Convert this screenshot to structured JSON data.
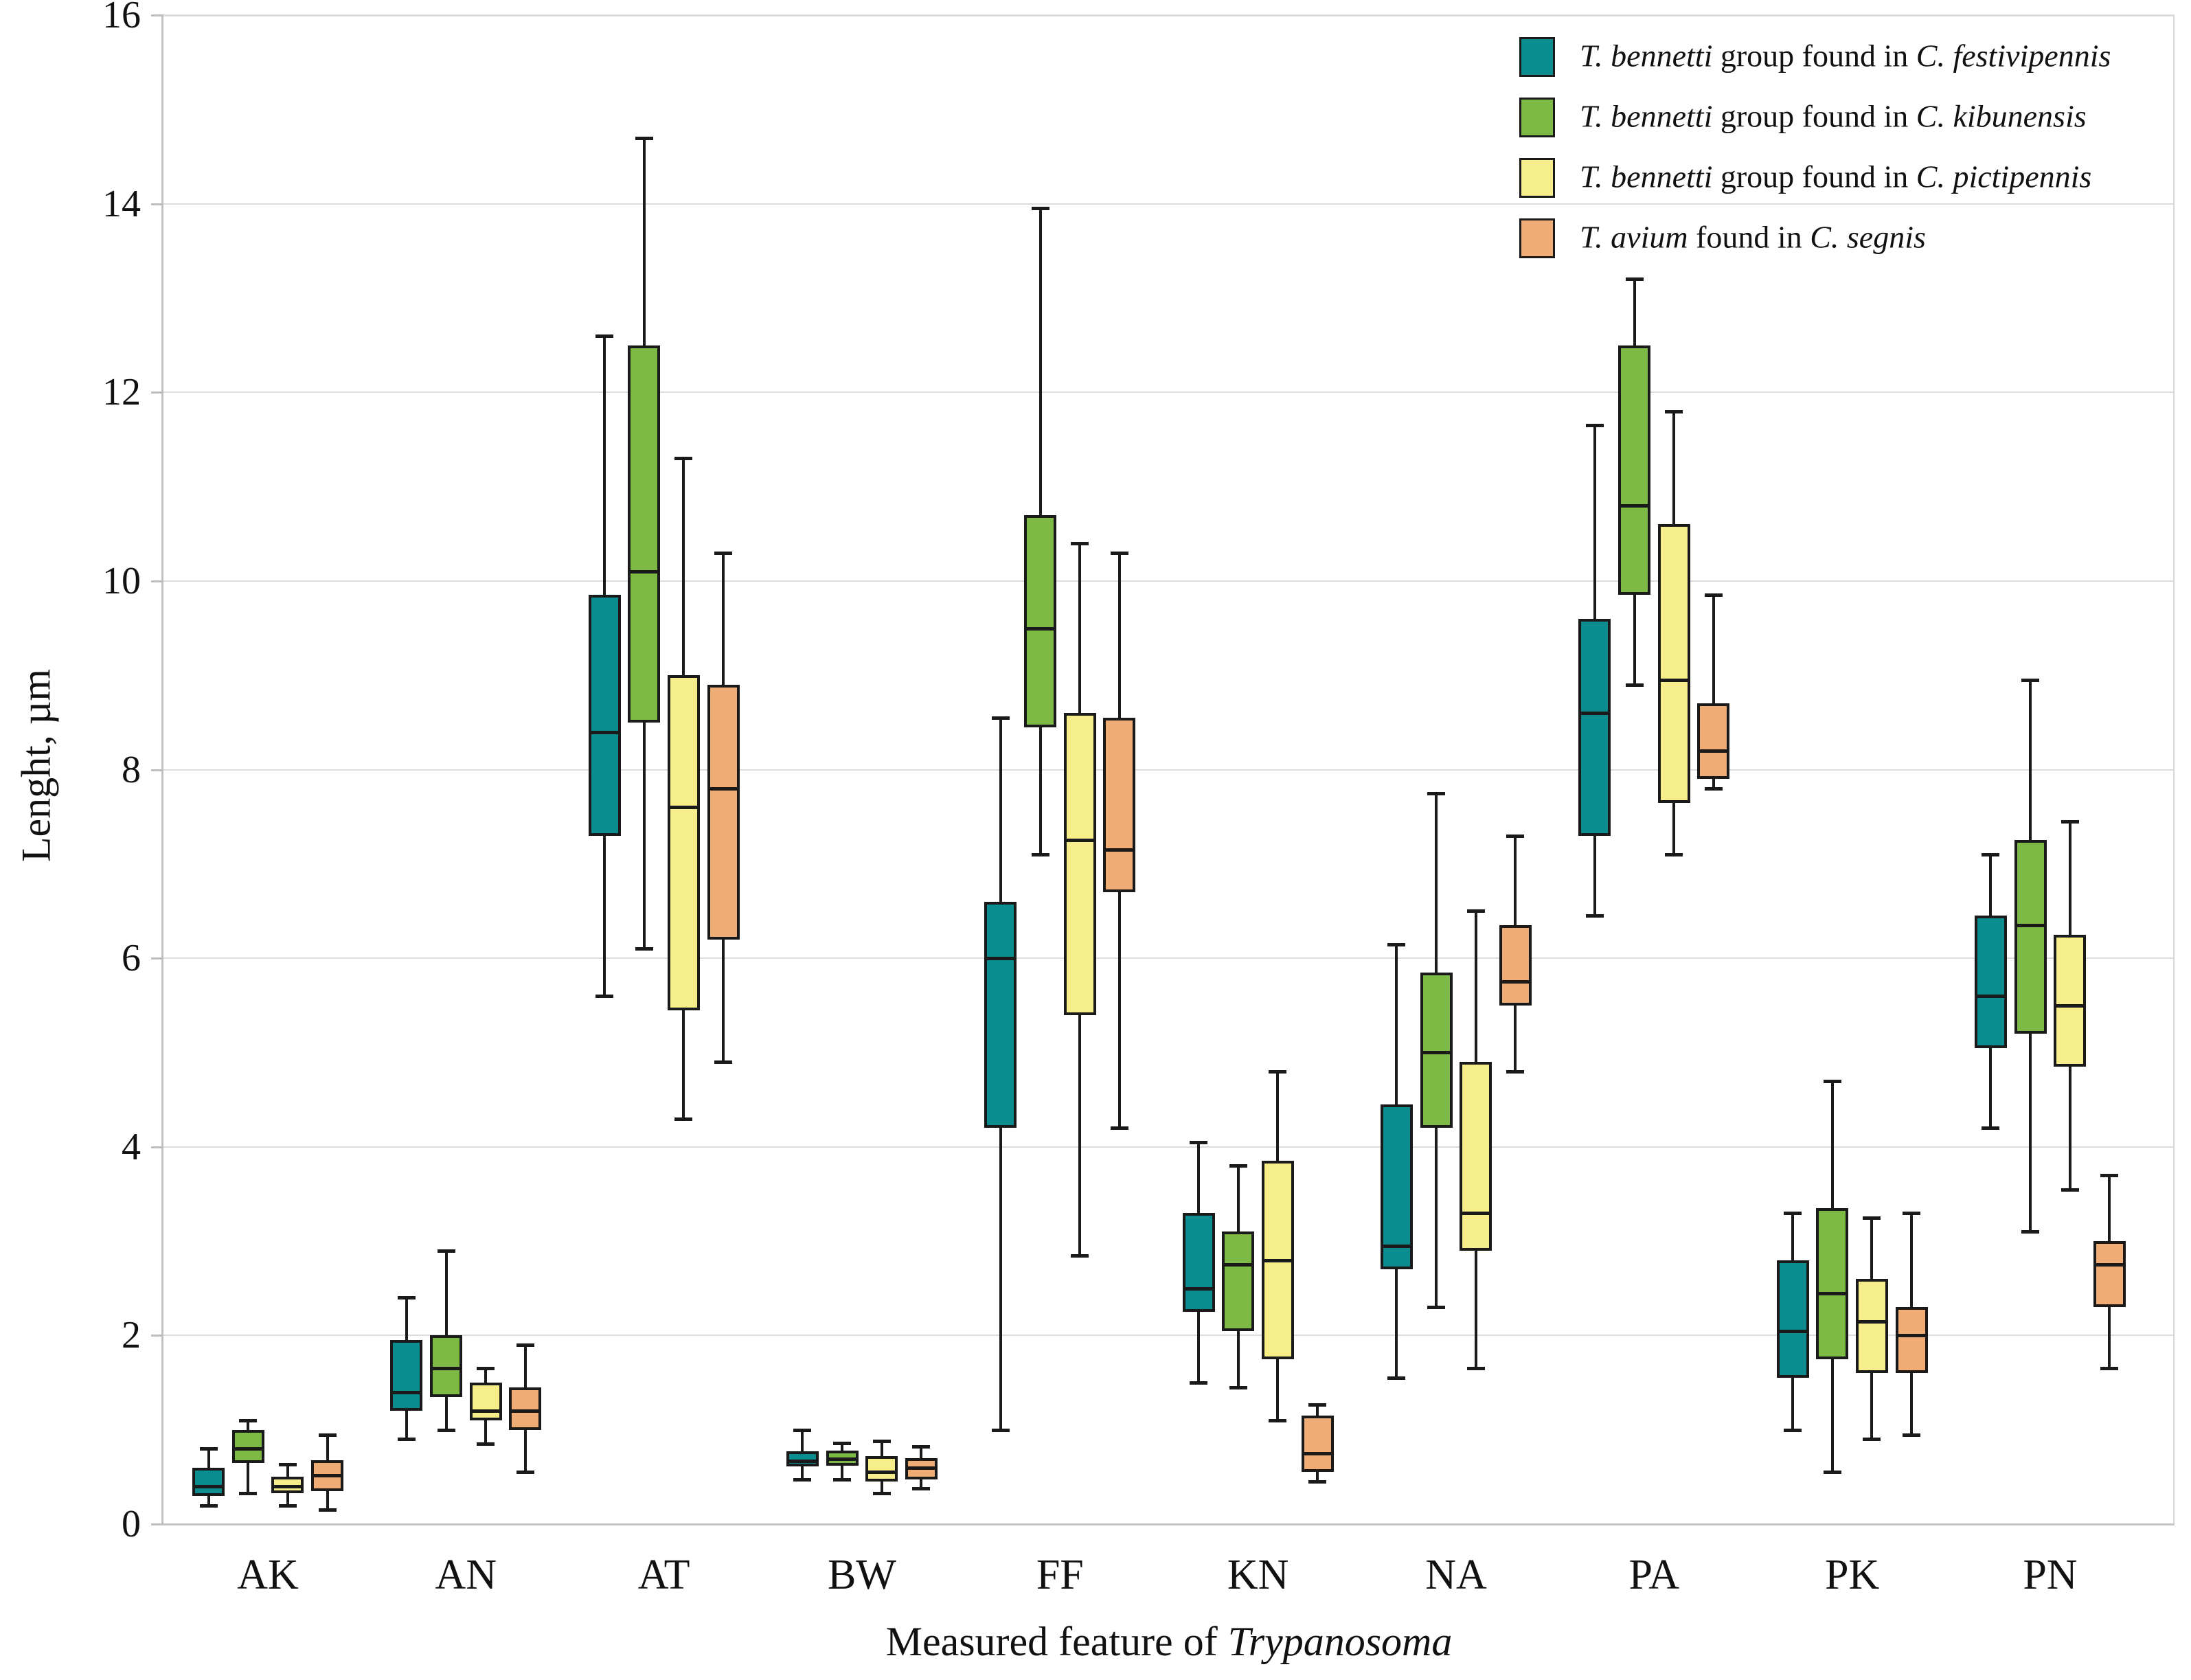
{
  "chart_data": {
    "type": "box",
    "title": "",
    "ylabel": "Lenght, µm",
    "xlabel_prefix": "Measured feature of ",
    "xlabel_italic": "Trypanosoma",
    "ylim": [
      0,
      16
    ],
    "yticks": [
      0,
      2,
      4,
      6,
      8,
      10,
      12,
      14,
      16
    ],
    "grid": true,
    "legend_position": "top-right",
    "categories": [
      "AK",
      "AN",
      "AT",
      "BW",
      "FF",
      "KN",
      "NA",
      "PA",
      "PK",
      "PN"
    ],
    "value_format": "[whisker_low, q1, median, q3, whisker_high] in µm",
    "series": [
      {
        "name": "T. bennetti group found in C. festivipennis",
        "color": "#0b8d8f",
        "legend_segments": [
          {
            "text": "T. bennetti",
            "italic": true
          },
          {
            "text": " group found in ",
            "italic": false
          },
          {
            "text": "C. festivipennis",
            "italic": true
          }
        ],
        "values": [
          [
            0.2,
            0.3,
            0.4,
            0.6,
            0.8
          ],
          [
            0.9,
            1.2,
            1.4,
            1.95,
            2.4
          ],
          [
            5.6,
            7.3,
            8.4,
            9.85,
            12.6
          ],
          [
            0.47,
            0.61,
            0.67,
            0.77,
            1.0
          ],
          [
            1.0,
            4.2,
            6.0,
            6.6,
            8.55
          ],
          [
            1.5,
            2.25,
            2.5,
            3.3,
            4.05
          ],
          [
            1.55,
            2.7,
            2.95,
            4.45,
            6.15
          ],
          [
            6.45,
            7.3,
            8.6,
            9.6,
            11.65
          ],
          [
            1.0,
            1.55,
            2.05,
            2.8,
            3.3
          ],
          [
            4.2,
            5.05,
            5.6,
            6.45,
            7.1
          ]
        ]
      },
      {
        "name": "T. bennetti group found in C. kibunensis",
        "color": "#7dba45",
        "legend_segments": [
          {
            "text": "T. bennetti",
            "italic": true
          },
          {
            "text": " group found in ",
            "italic": false
          },
          {
            "text": "C. kibunensis",
            "italic": true
          }
        ],
        "values": [
          [
            0.33,
            0.65,
            0.8,
            1.0,
            1.1
          ],
          [
            1.0,
            1.35,
            1.65,
            2.0,
            2.9
          ],
          [
            6.1,
            8.5,
            10.1,
            12.5,
            14.7
          ],
          [
            0.47,
            0.62,
            0.69,
            0.78,
            0.86
          ],
          [
            7.1,
            8.45,
            9.5,
            10.7,
            13.95
          ],
          [
            1.45,
            2.05,
            2.75,
            3.1,
            3.8
          ],
          [
            2.3,
            4.2,
            5.0,
            5.85,
            7.75
          ],
          [
            8.9,
            9.85,
            10.8,
            12.5,
            13.2
          ],
          [
            0.55,
            1.75,
            2.45,
            3.35,
            4.7
          ],
          [
            3.1,
            5.2,
            6.35,
            7.25,
            8.95
          ]
        ]
      },
      {
        "name": "T. bennetti group found in C. pictipennis",
        "color": "#f5ee8b",
        "legend_segments": [
          {
            "text": "T. bennetti",
            "italic": true
          },
          {
            "text": " group found in ",
            "italic": false
          },
          {
            "text": "C. pictipennis",
            "italic": true
          }
        ],
        "values": [
          [
            0.2,
            0.33,
            0.4,
            0.5,
            0.63
          ],
          [
            0.85,
            1.1,
            1.2,
            1.5,
            1.65
          ],
          [
            4.3,
            5.45,
            7.6,
            9.0,
            11.3
          ],
          [
            0.33,
            0.45,
            0.55,
            0.72,
            0.88
          ],
          [
            2.85,
            5.4,
            7.25,
            8.6,
            10.4
          ],
          [
            1.1,
            1.75,
            2.8,
            3.85,
            4.8
          ],
          [
            1.65,
            2.9,
            3.3,
            4.9,
            6.5
          ],
          [
            7.1,
            7.65,
            8.95,
            10.6,
            11.8
          ],
          [
            0.9,
            1.6,
            2.15,
            2.6,
            3.25
          ],
          [
            3.55,
            4.85,
            5.5,
            6.25,
            7.45
          ]
        ]
      },
      {
        "name": "T. avium found in C. segnis",
        "color": "#efac74",
        "legend_segments": [
          {
            "text": "T. avium",
            "italic": true
          },
          {
            "text": " found in ",
            "italic": false
          },
          {
            "text": "C. segnis",
            "italic": true
          }
        ],
        "values": [
          [
            0.15,
            0.35,
            0.52,
            0.68,
            0.95
          ],
          [
            0.55,
            1.0,
            1.2,
            1.45,
            1.9
          ],
          [
            4.9,
            6.2,
            7.8,
            8.9,
            10.3
          ],
          [
            0.38,
            0.47,
            0.6,
            0.7,
            0.82
          ],
          [
            4.2,
            6.7,
            7.15,
            8.55,
            10.3
          ],
          [
            0.45,
            0.55,
            0.75,
            1.15,
            1.27
          ],
          [
            4.8,
            5.5,
            5.75,
            6.35,
            7.3
          ],
          [
            7.8,
            7.9,
            8.2,
            8.7,
            9.85
          ],
          [
            0.95,
            1.6,
            2.0,
            2.3,
            3.3
          ],
          [
            1.65,
            2.3,
            2.75,
            3.0,
            3.7
          ]
        ]
      }
    ],
    "colors": {
      "grid": "#dcdcdc",
      "axis": "#c2c2c2",
      "box_border": "#1a1a1a",
      "series_teal": "#0b8d8f",
      "series_green": "#7dba45",
      "series_yellow": "#f5ee8b",
      "series_orange": "#efac74"
    }
  }
}
